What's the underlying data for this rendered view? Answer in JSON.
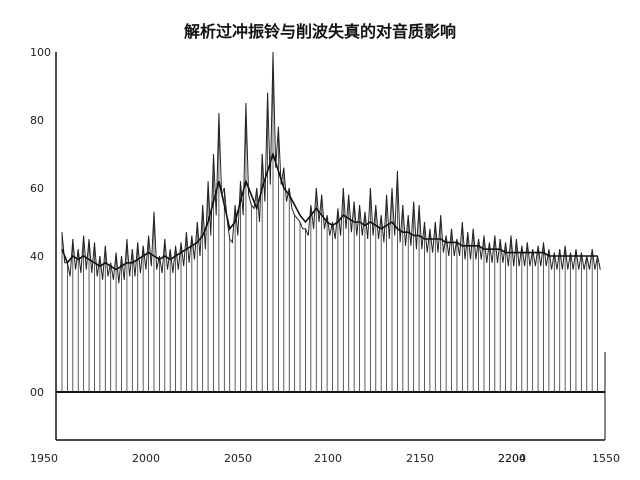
{
  "chart_data": {
    "type": "line",
    "title": "解析过冲振铃与削波失真的对音质影响",
    "xlabel": "",
    "ylabel": "",
    "x_ticks": [
      "1950",
      "2000",
      "2050",
      "2100",
      "2150",
      "2200",
      "2204",
      "1550"
    ],
    "y_ticks": [
      "00",
      "40",
      "60",
      "80",
      "100"
    ],
    "y_tick_values": [
      0,
      40,
      60,
      80,
      100
    ],
    "xlim": [
      0,
      640
    ],
    "ylim": [
      -12,
      100
    ],
    "baseline": 0,
    "grid": false,
    "series": [
      {
        "peaks": [
          47,
          38,
          45,
          42,
          46,
          45,
          44,
          40,
          43,
          38,
          41,
          40,
          45,
          42,
          44,
          43,
          46,
          53,
          40,
          45,
          42,
          43,
          44,
          47,
          46,
          50,
          55,
          62,
          70,
          82,
          60,
          45,
          55,
          62,
          85,
          55,
          60,
          70,
          88,
          100,
          78,
          66,
          60,
          52,
          50,
          48,
          55,
          60,
          58,
          52,
          50,
          54,
          60,
          58,
          56,
          55,
          53,
          60,
          55,
          52,
          58,
          60,
          65,
          55,
          52,
          56,
          55,
          50,
          48,
          50,
          52,
          46,
          48,
          45,
          50,
          47,
          48,
          45,
          46,
          44,
          46,
          45,
          44,
          46,
          45,
          43,
          44,
          42,
          43,
          44,
          42,
          41,
          42,
          43,
          41,
          42,
          41,
          40,
          42,
          40
        ],
        "envelope": [
          42,
          38,
          40,
          39,
          40,
          39,
          38,
          37,
          38,
          37,
          36,
          37,
          38,
          38,
          39,
          40,
          41,
          40,
          39,
          40,
          39,
          40,
          41,
          42,
          43,
          44,
          46,
          50,
          56,
          62,
          55,
          48,
          50,
          56,
          62,
          58,
          54,
          60,
          65,
          70,
          65,
          60,
          58,
          55,
          52,
          50,
          52,
          54,
          52,
          50,
          49,
          50,
          52,
          51,
          50,
          50,
          49,
          50,
          49,
          48,
          49,
          50,
          48,
          47,
          47,
          46,
          46,
          45,
          45,
          45,
          45,
          44,
          44,
          44,
          43,
          43,
          43,
          43,
          42,
          42,
          42,
          42,
          41,
          41,
          41,
          41,
          41,
          41,
          41,
          41,
          40,
          40,
          40,
          40,
          40,
          40,
          40,
          40,
          40,
          40
        ]
      }
    ]
  }
}
